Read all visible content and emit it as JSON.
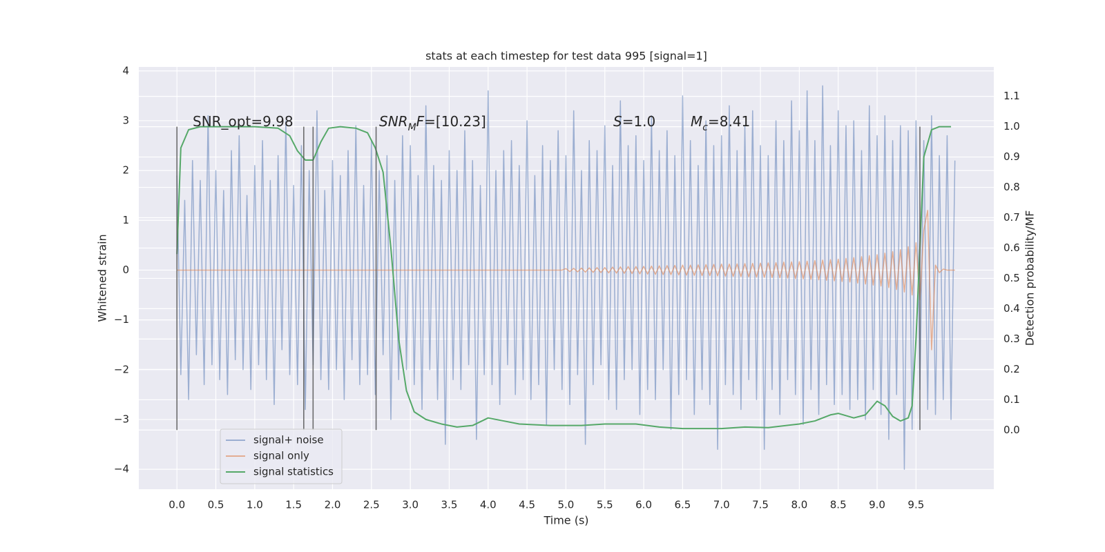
{
  "chart_data": {
    "type": "line",
    "title": "stats at each timestep for test data 995 [signal=1]",
    "xlabel": "Time (s)",
    "ylabel": "Whitened strain",
    "y2label": "Detection probability/MF",
    "grid": true,
    "legend": "lower left",
    "xlim": [
      -0.49,
      10.5
    ],
    "ylim": [
      -4.4,
      4.08
    ],
    "y2lim": [
      -0.195,
      1.197
    ],
    "xticks": [
      {
        "value": 0,
        "label": "0.0"
      },
      0.5,
      {
        "value": 1,
        "label": "1.0"
      },
      1.5,
      {
        "value": 2,
        "label": "2.0"
      },
      2.5,
      {
        "value": 3,
        "label": "3.0"
      },
      3.5,
      {
        "value": 4,
        "label": "4.0"
      },
      4.5,
      {
        "value": 5,
        "label": "5.0"
      },
      5.5,
      {
        "value": 6,
        "label": "6.0"
      },
      6.5,
      {
        "value": 7,
        "label": "7.0"
      },
      7.5,
      {
        "value": 8,
        "label": "8.0"
      },
      8.5,
      {
        "value": 9,
        "label": "9.0"
      },
      9.5
    ],
    "yticks": [
      {
        "value": -4,
        "label": "−4"
      },
      {
        "value": -3,
        "label": "−3"
      },
      {
        "value": -2,
        "label": "−2"
      },
      {
        "value": -1,
        "label": "−1"
      },
      0,
      1,
      2,
      3,
      4
    ],
    "y2ticks": [
      {
        "value": 0,
        "label": "0.0"
      },
      0.1,
      0.2,
      0.3,
      0.4,
      0.5,
      0.6,
      0.7,
      0.8,
      0.9,
      {
        "value": 1,
        "label": "1.0"
      },
      1.1
    ],
    "x": [
      0,
      0.05,
      0.1,
      0.15,
      0.2,
      0.25,
      0.3,
      0.35,
      0.4,
      0.45,
      0.5,
      0.55,
      0.6,
      0.65,
      0.7,
      0.75,
      0.8,
      0.85,
      0.9,
      0.95,
      1,
      1.05,
      1.1,
      1.15,
      1.2,
      1.25,
      1.3,
      1.35,
      1.4,
      1.45,
      1.5,
      1.55,
      1.6,
      1.65,
      1.7,
      1.75,
      1.8,
      1.85,
      1.9,
      1.95,
      2,
      2.05,
      2.1,
      2.15,
      2.2,
      2.25,
      2.3,
      2.35,
      2.4,
      2.45,
      2.5,
      2.55,
      2.6,
      2.65,
      2.7,
      2.75,
      2.8,
      2.85,
      2.9,
      2.95,
      3,
      3.05,
      3.1,
      3.15,
      3.2,
      3.25,
      3.3,
      3.35,
      3.4,
      3.45,
      3.5,
      3.55,
      3.6,
      3.65,
      3.7,
      3.75,
      3.8,
      3.85,
      3.9,
      3.95,
      4,
      4.05,
      4.1,
      4.15,
      4.2,
      4.25,
      4.3,
      4.35,
      4.4,
      4.45,
      4.5,
      4.55,
      4.6,
      4.65,
      4.7,
      4.75,
      4.8,
      4.85,
      4.9,
      4.95,
      5,
      5.05,
      5.1,
      5.15,
      5.2,
      5.25,
      5.3,
      5.35,
      5.4,
      5.45,
      5.5,
      5.55,
      5.6,
      5.65,
      5.7,
      5.75,
      5.8,
      5.85,
      5.9,
      5.95,
      6,
      6.05,
      6.1,
      6.15,
      6.2,
      6.25,
      6.3,
      6.35,
      6.4,
      6.45,
      6.5,
      6.55,
      6.6,
      6.65,
      6.7,
      6.75,
      6.8,
      6.85,
      6.9,
      6.95,
      7,
      7.05,
      7.1,
      7.15,
      7.2,
      7.25,
      7.3,
      7.35,
      7.4,
      7.45,
      7.5,
      7.55,
      7.6,
      7.65,
      7.7,
      7.75,
      7.8,
      7.85,
      7.9,
      7.95,
      8,
      8.05,
      8.1,
      8.15,
      8.2,
      8.25,
      8.3,
      8.35,
      8.4,
      8.45,
      8.5,
      8.55,
      8.6,
      8.65,
      8.7,
      8.75,
      8.8,
      8.85,
      8.9,
      8.95,
      9,
      9.05,
      9.1,
      9.15,
      9.2,
      9.25,
      9.3,
      9.35,
      9.4,
      9.45,
      9.5,
      9.55,
      9.6,
      9.65,
      9.7,
      9.75,
      9.8,
      9.85,
      9.9,
      9.95,
      10
    ],
    "series": [
      {
        "name": "signal+ noise",
        "color": "#4c72b0",
        "opacity": 0.5,
        "values": [
          1.9,
          -2.1,
          1.4,
          -2.6,
          2.2,
          -1.7,
          1.8,
          -2.3,
          3.1,
          -1.9,
          2.0,
          -2.2,
          1.6,
          -2.5,
          2.4,
          -1.8,
          2.7,
          -2.0,
          1.5,
          -2.4,
          2.1,
          -1.9,
          2.6,
          -2.2,
          1.8,
          -2.7,
          2.3,
          -1.6,
          3.0,
          -2.1,
          1.7,
          -2.3,
          2.5,
          -2.8,
          2.0,
          -1.9,
          3.2,
          -2.2,
          1.6,
          -2.4,
          2.2,
          -2.0,
          1.9,
          -2.6,
          2.4,
          -1.8,
          2.9,
          -2.3,
          1.7,
          -2.1,
          2.6,
          -2.5,
          2.0,
          -1.7,
          2.3,
          -3.0,
          1.8,
          -2.2,
          2.7,
          -2.0,
          2.5,
          -2.3,
          1.9,
          -2.8,
          3.3,
          -2.0,
          2.1,
          -2.6,
          1.8,
          -3.5,
          2.4,
          -2.2,
          2.0,
          -2.4,
          2.8,
          -1.9,
          2.2,
          -3.4,
          1.7,
          -2.1,
          3.6,
          -2.3,
          2.0,
          -2.7,
          2.4,
          -1.9,
          2.6,
          -2.5,
          2.1,
          -2.2,
          3.0,
          -2.6,
          1.9,
          -2.3,
          2.5,
          -3.1,
          2.2,
          -2.0,
          2.8,
          -2.4,
          2.3,
          -2.7,
          3.2,
          -2.1,
          2.0,
          -3.5,
          2.6,
          -2.3,
          2.4,
          -1.9,
          2.9,
          -2.6,
          2.1,
          -2.8,
          3.4,
          -2.2,
          2.5,
          -2.0,
          2.7,
          -2.9,
          2.2,
          -2.4,
          3.1,
          -2.6,
          2.4,
          -2.0,
          2.8,
          -3.2,
          2.3,
          -2.5,
          3.5,
          -2.2,
          2.6,
          -2.9,
          2.1,
          -2.4,
          3.0,
          -2.7,
          2.5,
          -3.6,
          2.7,
          -2.3,
          3.3,
          -2.5,
          2.4,
          -2.8,
          2.9,
          -2.2,
          3.2,
          -2.6,
          2.5,
          -3.6,
          2.3,
          -2.4,
          3.0,
          -2.9,
          2.6,
          -2.2,
          3.4,
          -2.5,
          2.8,
          -3.1,
          3.6,
          -2.4,
          2.6,
          -2.9,
          3.7,
          -2.3,
          2.5,
          -2.7,
          3.2,
          -2.5,
          2.9,
          -2.8,
          3.0,
          -2.6,
          2.4,
          -3.0,
          3.3,
          -2.4,
          2.7,
          -2.9,
          3.1,
          -3.4,
          2.6,
          -2.5,
          2.9,
          -4.0,
          2.8,
          -3.2,
          3.0,
          -2.4,
          2.6,
          -2.8,
          3.1,
          -2.9,
          2.3,
          -2.6,
          2.7,
          -3.0,
          2.2
        ]
      },
      {
        "name": "signal only",
        "color": "#dd8452",
        "opacity": 0.6,
        "values": [
          0,
          0,
          0,
          0,
          0,
          0,
          0,
          0,
          0,
          0,
          0,
          0,
          0,
          0,
          0,
          0,
          0,
          0,
          0,
          0,
          0,
          0,
          0,
          0,
          0,
          0,
          0,
          0,
          0,
          0,
          0,
          0,
          0,
          0,
          0,
          0,
          0,
          0,
          0,
          0,
          0,
          0,
          0,
          0,
          0,
          0,
          0,
          0,
          0,
          0,
          0,
          0,
          0,
          0,
          0,
          0,
          0,
          0,
          0,
          0,
          0,
          0,
          0,
          0,
          0,
          0,
          0,
          0,
          0,
          0,
          0,
          0,
          0,
          0,
          0,
          0,
          0,
          0,
          0,
          0,
          0,
          0,
          0,
          0,
          0,
          0,
          0,
          0,
          0,
          0,
          0,
          0,
          0,
          0,
          0,
          0,
          0,
          0,
          0,
          0,
          0.03,
          -0.03,
          0.035,
          -0.035,
          0.04,
          -0.04,
          0.045,
          -0.045,
          0.05,
          -0.05,
          0.05,
          -0.055,
          0.06,
          -0.06,
          0.065,
          -0.065,
          0.07,
          -0.07,
          0.07,
          -0.075,
          0.075,
          -0.08,
          0.08,
          -0.085,
          0.085,
          -0.09,
          0.09,
          -0.09,
          0.095,
          -0.095,
          0.1,
          -0.1,
          0.1,
          -0.105,
          0.105,
          -0.11,
          0.11,
          -0.11,
          0.115,
          -0.115,
          0.12,
          -0.12,
          0.12,
          -0.125,
          0.125,
          -0.13,
          0.13,
          -0.135,
          0.135,
          -0.14,
          0.14,
          -0.145,
          0.145,
          -0.15,
          0.15,
          -0.155,
          0.16,
          -0.16,
          0.165,
          -0.17,
          0.17,
          -0.175,
          0.18,
          -0.185,
          0.19,
          -0.195,
          0.2,
          -0.205,
          0.21,
          -0.215,
          0.22,
          -0.23,
          0.235,
          -0.24,
          0.25,
          -0.26,
          0.27,
          -0.28,
          0.29,
          -0.3,
          0.31,
          -0.32,
          0.34,
          -0.35,
          0.37,
          -0.39,
          0.41,
          -0.44,
          0.47,
          -0.5,
          0.55,
          -0.6,
          0.8,
          1.2,
          -1.6,
          0.1,
          -0.05,
          0.02,
          0,
          0,
          0
        ]
      },
      {
        "name": "signal statistics",
        "color": "#55a868",
        "opacity": 1,
        "axis": "y2",
        "x": [
          0,
          0.05,
          0.15,
          0.3,
          0.6,
          1.0,
          1.3,
          1.45,
          1.55,
          1.65,
          1.75,
          1.85,
          1.95,
          2.1,
          2.3,
          2.45,
          2.55,
          2.65,
          2.75,
          2.85,
          2.95,
          3.05,
          3.2,
          3.4,
          3.6,
          3.8,
          4.0,
          4.2,
          4.4,
          4.8,
          5.2,
          5.5,
          5.9,
          6.2,
          6.5,
          7.0,
          7.3,
          7.6,
          8.0,
          8.2,
          8.4,
          8.5,
          8.7,
          8.85,
          9.0,
          9.1,
          9.2,
          9.3,
          9.4,
          9.45,
          9.5,
          9.55,
          9.6,
          9.7,
          9.8,
          9.95
        ],
        "values": [
          0.58,
          0.93,
          0.99,
          1.0,
          1.0,
          1.0,
          0.995,
          0.97,
          0.92,
          0.89,
          0.89,
          0.95,
          0.995,
          1.0,
          0.995,
          0.98,
          0.93,
          0.85,
          0.6,
          0.3,
          0.13,
          0.06,
          0.035,
          0.02,
          0.01,
          0.015,
          0.04,
          0.03,
          0.02,
          0.015,
          0.015,
          0.02,
          0.02,
          0.01,
          0.005,
          0.005,
          0.01,
          0.008,
          0.02,
          0.03,
          0.05,
          0.055,
          0.04,
          0.05,
          0.095,
          0.08,
          0.045,
          0.03,
          0.04,
          0.08,
          0.3,
          0.6,
          0.9,
          0.99,
          1.0,
          1.0
        ]
      }
    ],
    "vlines": {
      "x": [
        0,
        1.63,
        1.75,
        2.56,
        9.55
      ],
      "ymin": 0,
      "ymax": 1,
      "axis": "y2",
      "color": "#555555"
    },
    "annotations": [
      {
        "parts": [
          {
            "text": "SNR_opt=9.98"
          }
        ]
      },
      {
        "parts": [
          {
            "text": "SNR",
            "italic": true
          },
          {
            "text": "M",
            "italic": true,
            "sub": true
          },
          {
            "text": "F",
            "italic": true
          },
          {
            "text": "=[10.23]"
          }
        ]
      },
      {
        "parts": [
          {
            "text": "S",
            "italic": true
          },
          {
            "text": "=1.0"
          }
        ]
      },
      {
        "parts": [
          {
            "text": "M",
            "italic": true
          },
          {
            "text": "c",
            "italic": true,
            "sub": true
          },
          {
            "text": "=8.41"
          }
        ]
      }
    ]
  }
}
